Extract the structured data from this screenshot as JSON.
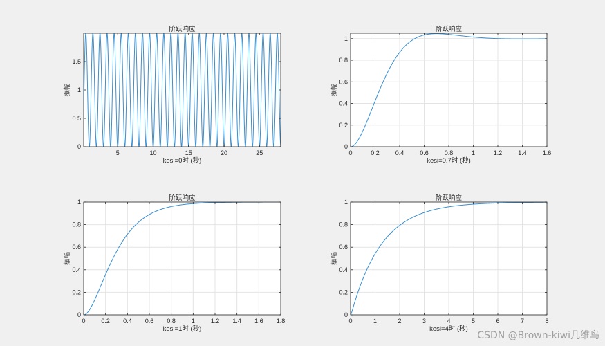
{
  "watermark": "CSDN @Brown-kiwi几维鸟",
  "colors": {
    "line": "#3a8fd0",
    "grid": "#e4e4e4",
    "axes": "#262626",
    "background": "#ffffff",
    "figure": "#f0f0f0"
  },
  "chart_data": [
    {
      "type": "line",
      "title": "阶跃响应",
      "xlabel": "kesi=0时 (秒)",
      "ylabel": "振幅",
      "xlim": [
        0.2,
        28
      ],
      "ylim": [
        0,
        2
      ],
      "xticks": [
        5,
        10,
        15,
        20,
        25
      ],
      "yticks": [
        0,
        0.5,
        1,
        1.5
      ],
      "xtick_labels": [
        "5",
        "10",
        "15",
        "20",
        "25"
      ],
      "ytick_labels": [
        "0",
        "0.5",
        "1",
        "1.5"
      ],
      "grid": false,
      "zeta": 0,
      "omega_n": 6.28,
      "series": [
        {
          "x": [
            0.5,
            1.0,
            1.5,
            2.0,
            2.5,
            3.0
          ],
          "y": [
            2,
            0,
            2,
            0,
            2,
            0
          ]
        }
      ]
    },
    {
      "type": "line",
      "title": "阶跃响应",
      "xlabel": "kesi=0.7时 (秒)",
      "ylabel": "振幅",
      "xlim": [
        0,
        1.6
      ],
      "ylim": [
        0,
        1.05
      ],
      "xticks": [
        0,
        0.2,
        0.4,
        0.6,
        0.8,
        1,
        1.2,
        1.4,
        1.6
      ],
      "yticks": [
        0,
        0.2,
        0.4,
        0.6,
        0.8,
        1
      ],
      "xtick_labels": [
        "0",
        "0.2",
        "0.4",
        "0.6",
        "0.8",
        "1",
        "1.2",
        "1.4",
        "1.6"
      ],
      "ytick_labels": [
        "0",
        "0.2",
        "0.4",
        "0.6",
        "0.8",
        "1"
      ],
      "grid": true,
      "zeta": 0.7,
      "omega_n": 6.28,
      "series": [
        {
          "x": [
            0,
            0.2,
            0.4,
            0.6,
            0.7,
            0.8,
            1.0,
            1.2,
            1.4,
            1.6
          ],
          "y": [
            0,
            0.3,
            0.77,
            1.02,
            1.045,
            1.04,
            1.01,
            1.0,
            0.995,
            1.0
          ]
        }
      ]
    },
    {
      "type": "line",
      "title": "阶跃响应",
      "xlabel": "kesi=1时 (秒)",
      "ylabel": "振幅",
      "xlim": [
        0,
        1.8
      ],
      "ylim": [
        0,
        1
      ],
      "xticks": [
        0,
        0.2,
        0.4,
        0.6,
        0.8,
        1,
        1.2,
        1.4,
        1.6,
        1.8
      ],
      "yticks": [
        0,
        0.2,
        0.4,
        0.6,
        0.8,
        1
      ],
      "xtick_labels": [
        "0",
        "0.2",
        "0.4",
        "0.6",
        "0.8",
        "1",
        "1.2",
        "1.4",
        "1.6",
        "1.8"
      ],
      "ytick_labels": [
        "0",
        "0.2",
        "0.4",
        "0.6",
        "0.8",
        "1"
      ],
      "grid": true,
      "zeta": 1,
      "omega_n": 6.28,
      "series": [
        {
          "x": [
            0,
            0.2,
            0.4,
            0.6,
            0.8,
            1.0,
            1.2,
            1.8
          ],
          "y": [
            0,
            0.36,
            0.71,
            0.89,
            0.96,
            0.985,
            0.995,
            1.0
          ]
        }
      ]
    },
    {
      "type": "line",
      "title": "阶跃响应",
      "xlabel": "kesi=4时 (秒)",
      "ylabel": "振幅",
      "xlim": [
        0,
        8
      ],
      "ylim": [
        0,
        1
      ],
      "xticks": [
        0,
        1,
        2,
        3,
        4,
        5,
        6,
        7,
        8
      ],
      "yticks": [
        0,
        0.2,
        0.4,
        0.6,
        0.8,
        1
      ],
      "xtick_labels": [
        "0",
        "1",
        "2",
        "3",
        "4",
        "5",
        "6",
        "7",
        "8"
      ],
      "ytick_labels": [
        "0",
        "0.2",
        "0.4",
        "0.6",
        "0.8",
        "1"
      ],
      "grid": true,
      "zeta": 4,
      "omega_n": 6.28,
      "series": [
        {
          "x": [
            0,
            1,
            2,
            3,
            4,
            5,
            6,
            7,
            8
          ],
          "y": [
            0,
            0.54,
            0.79,
            0.9,
            0.955,
            0.98,
            0.99,
            0.995,
            1.0
          ]
        }
      ]
    }
  ]
}
